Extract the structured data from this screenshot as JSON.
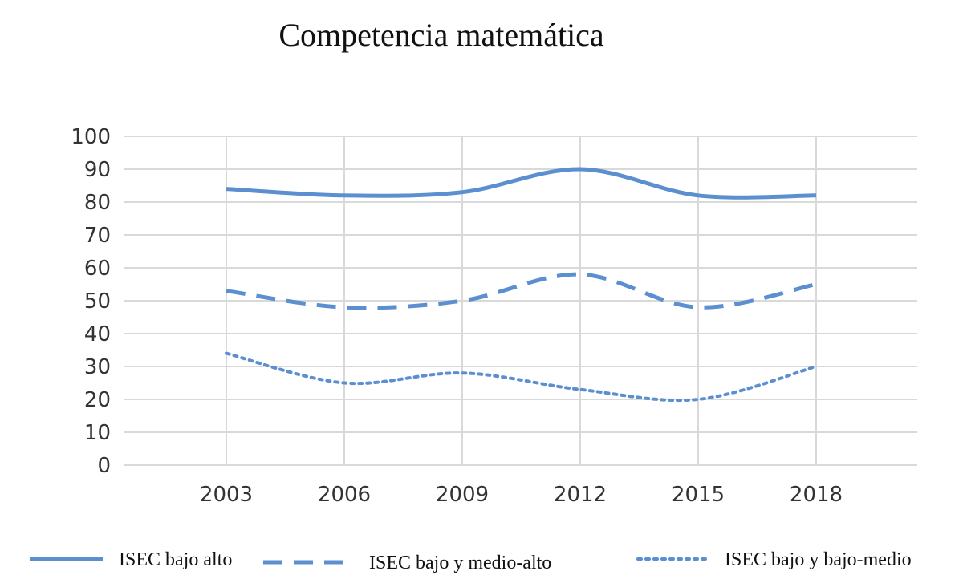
{
  "chart_data": {
    "type": "line",
    "title": "Competencia matemática",
    "xlabel": "",
    "ylabel": "",
    "ylim": [
      0,
      100
    ],
    "yticks": [
      0,
      10,
      20,
      30,
      40,
      50,
      60,
      70,
      80,
      90,
      100
    ],
    "categories": [
      "2003",
      "2006",
      "2009",
      "2012",
      "2015",
      "2018"
    ],
    "grid": true,
    "legend_position": "bottom",
    "series": [
      {
        "name": "ISEC bajo alto",
        "values": [
          84,
          82,
          83,
          90,
          82,
          82
        ],
        "style": "solid",
        "color": "#5b8fd0"
      },
      {
        "name": "ISEC bajo y medio-alto",
        "values": [
          53,
          48,
          50,
          58,
          48,
          55
        ],
        "style": "dashed",
        "color": "#5b8fd0"
      },
      {
        "name": "ISEC bajo y bajo-medio",
        "values": [
          34,
          25,
          28,
          23,
          20,
          30
        ],
        "style": "dotted",
        "color": "#5b8fd0"
      }
    ]
  }
}
